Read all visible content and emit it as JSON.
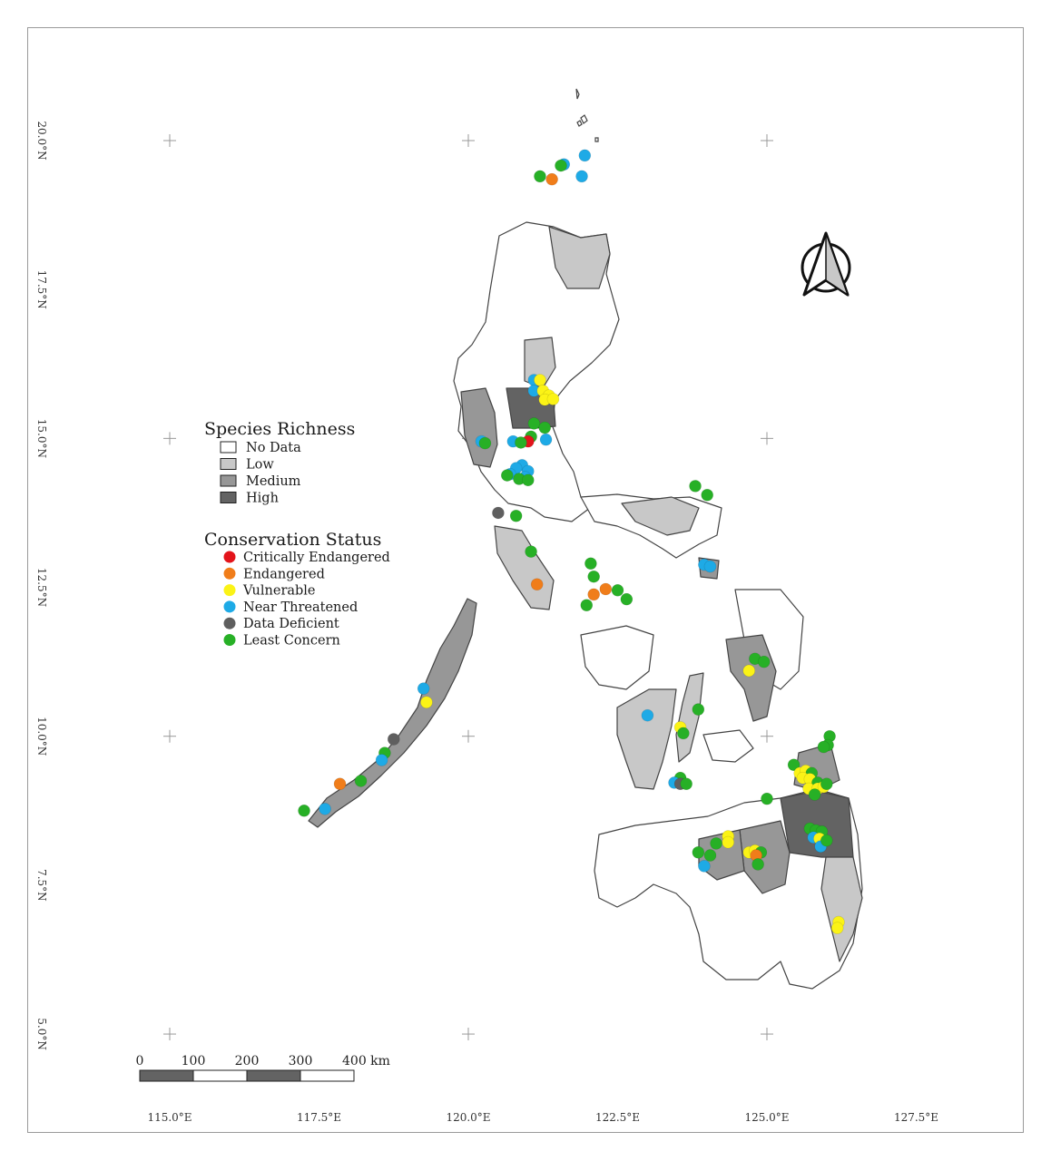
{
  "colors": {
    "richness": {
      "no_data": "#ffffff",
      "low": "#c8c8c8",
      "medium": "#979797",
      "high": "#636363"
    },
    "status": {
      "critically_endangered": "#e3141b",
      "endangered": "#f07d1a",
      "vulnerable": "#fbf316",
      "near_threatened": "#1eaae6",
      "data_deficient": "#5f5f5f",
      "least_concern": "#27b026"
    }
  },
  "legend": {
    "richness_title": "Species Richness",
    "richness_items": [
      {
        "key": "no_data",
        "label": "No Data"
      },
      {
        "key": "low",
        "label": "Low"
      },
      {
        "key": "medium",
        "label": "Medium"
      },
      {
        "key": "high",
        "label": "High"
      }
    ],
    "status_title": "Conservation Status",
    "status_items": [
      {
        "key": "critically_endangered",
        "label": "Critically Endangered"
      },
      {
        "key": "endangered",
        "label": "Endangered"
      },
      {
        "key": "vulnerable",
        "label": "Vulnerable"
      },
      {
        "key": "near_threatened",
        "label": "Near Threatened"
      },
      {
        "key": "data_deficient",
        "label": "Data Deficient"
      },
      {
        "key": "least_concern",
        "label": "Least Concern"
      }
    ]
  },
  "graticule": {
    "lon_labels": [
      "115.0°E",
      "117.5°E",
      "120.0°E",
      "122.5°E",
      "125.0°E",
      "127.5°E"
    ],
    "lat_labels": [
      "20.0°N",
      "17.5°N",
      "15.0°N",
      "12.5°N",
      "10.0°N",
      "7.5°N",
      "5.0°N"
    ],
    "lon_values": [
      115.0,
      117.5,
      120.0,
      122.5,
      125.0,
      127.5
    ],
    "lat_values": [
      20.0,
      17.5,
      15.0,
      12.5,
      10.0,
      7.5,
      5.0
    ]
  },
  "scale_bar": {
    "labels": [
      "0",
      "100",
      "200",
      "300",
      "400 km"
    ]
  },
  "north_arrow_icon": "north-arrow-icon",
  "occurrences": [
    {
      "lon": 121.6,
      "lat": 19.6,
      "status": "near_threatened"
    },
    {
      "lon": 121.95,
      "lat": 19.75,
      "status": "near_threatened"
    },
    {
      "lon": 121.55,
      "lat": 19.58,
      "status": "least_concern"
    },
    {
      "lon": 121.2,
      "lat": 19.4,
      "status": "least_concern"
    },
    {
      "lon": 121.9,
      "lat": 19.4,
      "status": "near_threatened"
    },
    {
      "lon": 121.4,
      "lat": 19.35,
      "status": "endangered"
    },
    {
      "lon": 121.1,
      "lat": 15.98,
      "status": "near_threatened"
    },
    {
      "lon": 121.2,
      "lat": 15.98,
      "status": "vulnerable"
    },
    {
      "lon": 121.1,
      "lat": 15.8,
      "status": "near_threatened"
    },
    {
      "lon": 121.25,
      "lat": 15.8,
      "status": "vulnerable"
    },
    {
      "lon": 121.35,
      "lat": 15.72,
      "status": "vulnerable"
    },
    {
      "lon": 121.28,
      "lat": 15.65,
      "status": "vulnerable"
    },
    {
      "lon": 121.42,
      "lat": 15.66,
      "status": "vulnerable"
    },
    {
      "lon": 121.1,
      "lat": 15.25,
      "status": "least_concern"
    },
    {
      "lon": 121.28,
      "lat": 15.18,
      "status": "least_concern"
    },
    {
      "lon": 121.05,
      "lat": 15.03,
      "status": "least_concern"
    },
    {
      "lon": 121.0,
      "lat": 14.95,
      "status": "critically_endangered"
    },
    {
      "lon": 121.3,
      "lat": 14.98,
      "status": "near_threatened"
    },
    {
      "lon": 120.75,
      "lat": 14.95,
      "status": "near_threatened"
    },
    {
      "lon": 120.88,
      "lat": 14.93,
      "status": "least_concern"
    },
    {
      "lon": 120.22,
      "lat": 14.95,
      "status": "near_threatened"
    },
    {
      "lon": 120.28,
      "lat": 14.92,
      "status": "least_concern"
    },
    {
      "lon": 120.9,
      "lat": 14.55,
      "status": "near_threatened"
    },
    {
      "lon": 120.8,
      "lat": 14.5,
      "status": "near_threatened"
    },
    {
      "lon": 121.0,
      "lat": 14.45,
      "status": "near_threatened"
    },
    {
      "lon": 120.7,
      "lat": 14.4,
      "status": "near_threatened"
    },
    {
      "lon": 120.95,
      "lat": 14.35,
      "status": "near_threatened"
    },
    {
      "lon": 120.85,
      "lat": 14.32,
      "status": "least_concern"
    },
    {
      "lon": 120.65,
      "lat": 14.38,
      "status": "least_concern"
    },
    {
      "lon": 121.0,
      "lat": 14.3,
      "status": "least_concern"
    },
    {
      "lon": 120.5,
      "lat": 13.75,
      "status": "data_deficient"
    },
    {
      "lon": 120.8,
      "lat": 13.7,
      "status": "least_concern"
    },
    {
      "lon": 121.05,
      "lat": 13.1,
      "status": "least_concern"
    },
    {
      "lon": 121.15,
      "lat": 12.55,
      "status": "endangered"
    },
    {
      "lon": 123.8,
      "lat": 14.2,
      "status": "least_concern"
    },
    {
      "lon": 124.0,
      "lat": 14.05,
      "status": "least_concern"
    },
    {
      "lon": 123.95,
      "lat": 12.88,
      "status": "near_threatened"
    },
    {
      "lon": 124.05,
      "lat": 12.85,
      "status": "near_threatened"
    },
    {
      "lon": 122.05,
      "lat": 12.9,
      "status": "least_concern"
    },
    {
      "lon": 122.1,
      "lat": 12.68,
      "status": "least_concern"
    },
    {
      "lon": 122.1,
      "lat": 12.38,
      "status": "endangered"
    },
    {
      "lon": 122.3,
      "lat": 12.47,
      "status": "endangered"
    },
    {
      "lon": 122.5,
      "lat": 12.45,
      "status": "least_concern"
    },
    {
      "lon": 122.65,
      "lat": 12.3,
      "status": "least_concern"
    },
    {
      "lon": 121.98,
      "lat": 12.2,
      "status": "least_concern"
    },
    {
      "lon": 124.8,
      "lat": 11.3,
      "status": "least_concern"
    },
    {
      "lon": 124.95,
      "lat": 11.25,
      "status": "least_concern"
    },
    {
      "lon": 124.7,
      "lat": 11.1,
      "status": "vulnerable"
    },
    {
      "lon": 123.0,
      "lat": 10.35,
      "status": "near_threatened"
    },
    {
      "lon": 123.85,
      "lat": 10.45,
      "status": "least_concern"
    },
    {
      "lon": 123.55,
      "lat": 10.15,
      "status": "vulnerable"
    },
    {
      "lon": 123.6,
      "lat": 10.05,
      "status": "least_concern"
    },
    {
      "lon": 123.55,
      "lat": 9.3,
      "status": "least_concern"
    },
    {
      "lon": 123.45,
      "lat": 9.22,
      "status": "near_threatened"
    },
    {
      "lon": 123.55,
      "lat": 9.2,
      "status": "data_deficient"
    },
    {
      "lon": 123.65,
      "lat": 9.2,
      "status": "least_concern"
    },
    {
      "lon": 119.25,
      "lat": 10.8,
      "status": "near_threatened"
    },
    {
      "lon": 119.3,
      "lat": 10.57,
      "status": "vulnerable"
    },
    {
      "lon": 118.75,
      "lat": 9.95,
      "status": "data_deficient"
    },
    {
      "lon": 118.6,
      "lat": 9.72,
      "status": "least_concern"
    },
    {
      "lon": 118.55,
      "lat": 9.6,
      "status": "near_threatened"
    },
    {
      "lon": 117.85,
      "lat": 9.2,
      "status": "endangered"
    },
    {
      "lon": 118.2,
      "lat": 9.25,
      "status": "least_concern"
    },
    {
      "lon": 117.6,
      "lat": 8.78,
      "status": "near_threatened"
    },
    {
      "lon": 117.25,
      "lat": 8.75,
      "status": "least_concern"
    },
    {
      "lon": 126.05,
      "lat": 10.0,
      "status": "least_concern"
    },
    {
      "lon": 126.02,
      "lat": 9.85,
      "status": "least_concern"
    },
    {
      "lon": 125.95,
      "lat": 9.82,
      "status": "least_concern"
    },
    {
      "lon": 125.45,
      "lat": 9.52,
      "status": "least_concern"
    },
    {
      "lon": 125.55,
      "lat": 9.38,
      "status": "vulnerable"
    },
    {
      "lon": 125.65,
      "lat": 9.42,
      "status": "vulnerable"
    },
    {
      "lon": 125.75,
      "lat": 9.38,
      "status": "least_concern"
    },
    {
      "lon": 125.6,
      "lat": 9.3,
      "status": "vulnerable"
    },
    {
      "lon": 125.72,
      "lat": 9.28,
      "status": "vulnerable"
    },
    {
      "lon": 125.85,
      "lat": 9.22,
      "status": "least_concern"
    },
    {
      "lon": 125.7,
      "lat": 9.12,
      "status": "vulnerable"
    },
    {
      "lon": 125.85,
      "lat": 9.12,
      "status": "vulnerable"
    },
    {
      "lon": 125.95,
      "lat": 9.15,
      "status": "vulnerable"
    },
    {
      "lon": 126.0,
      "lat": 9.2,
      "status": "least_concern"
    },
    {
      "lon": 125.8,
      "lat": 9.02,
      "status": "least_concern"
    },
    {
      "lon": 125.0,
      "lat": 8.95,
      "status": "least_concern"
    },
    {
      "lon": 125.72,
      "lat": 8.45,
      "status": "least_concern"
    },
    {
      "lon": 125.82,
      "lat": 8.42,
      "status": "least_concern"
    },
    {
      "lon": 125.92,
      "lat": 8.4,
      "status": "least_concern"
    },
    {
      "lon": 125.78,
      "lat": 8.3,
      "status": "near_threatened"
    },
    {
      "lon": 125.88,
      "lat": 8.28,
      "status": "vulnerable"
    },
    {
      "lon": 125.9,
      "lat": 8.15,
      "status": "near_threatened"
    },
    {
      "lon": 126.0,
      "lat": 8.25,
      "status": "least_concern"
    },
    {
      "lon": 124.35,
      "lat": 8.32,
      "status": "vulnerable"
    },
    {
      "lon": 124.35,
      "lat": 8.22,
      "status": "vulnerable"
    },
    {
      "lon": 124.15,
      "lat": 8.2,
      "status": "least_concern"
    },
    {
      "lon": 124.7,
      "lat": 8.05,
      "status": "vulnerable"
    },
    {
      "lon": 124.8,
      "lat": 8.08,
      "status": "vulnerable"
    },
    {
      "lon": 124.9,
      "lat": 8.05,
      "status": "least_concern"
    },
    {
      "lon": 124.82,
      "lat": 8.0,
      "status": "endangered"
    },
    {
      "lon": 124.85,
      "lat": 7.85,
      "status": "least_concern"
    },
    {
      "lon": 123.85,
      "lat": 8.05,
      "status": "least_concern"
    },
    {
      "lon": 124.05,
      "lat": 8.0,
      "status": "least_concern"
    },
    {
      "lon": 123.95,
      "lat": 7.82,
      "status": "near_threatened"
    },
    {
      "lon": 126.2,
      "lat": 6.88,
      "status": "vulnerable"
    },
    {
      "lon": 126.18,
      "lat": 6.78,
      "status": "vulnerable"
    }
  ]
}
